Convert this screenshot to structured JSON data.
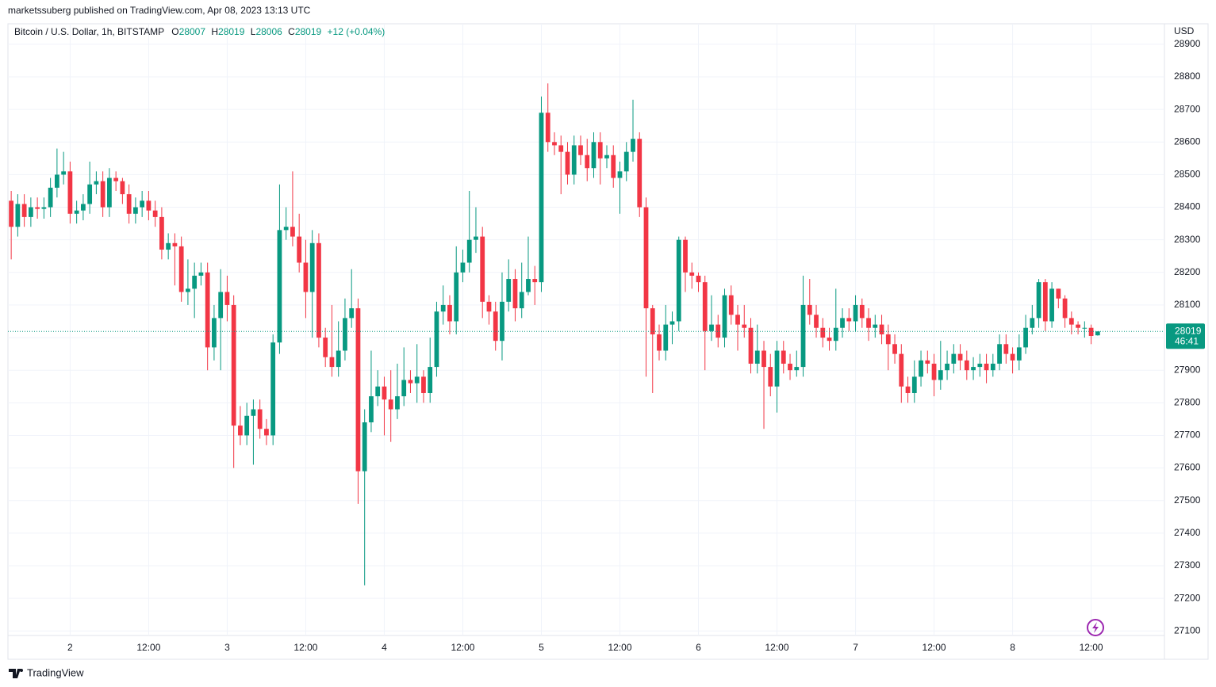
{
  "chart_data": {
    "type": "candlestick",
    "published": "marketssuberg published on TradingView.com, Apr 08, 2023 13:13 UTC",
    "legend": {
      "symbol": "Bitcoin / U.S. Dollar, 1h, BITSTAMP",
      "o_label": "O",
      "o": 28007,
      "h_label": "H",
      "h": 28019,
      "l_label": "L",
      "l": 28006,
      "c_label": "C",
      "c": 28019,
      "change": "+12 (+0.04%)"
    },
    "currency": "USD",
    "last_price": 28019,
    "countdown": "46:41",
    "brand": "TradingView",
    "up_color": "#089981",
    "down_color": "#f23645",
    "grid": true,
    "xlim": [
      -0.5,
      176.2
    ],
    "xticks": [
      {
        "value": 9,
        "label": "2"
      },
      {
        "value": 21,
        "label": "12:00"
      },
      {
        "value": 33,
        "label": "3"
      },
      {
        "value": 45,
        "label": "12:00"
      },
      {
        "value": 57,
        "label": "4"
      },
      {
        "value": 69,
        "label": "12:00"
      },
      {
        "value": 81,
        "label": "5"
      },
      {
        "value": 93,
        "label": "12:00"
      },
      {
        "value": 105,
        "label": "6"
      },
      {
        "value": 117,
        "label": "12:00"
      },
      {
        "value": 129,
        "label": "7"
      },
      {
        "value": 141,
        "label": "12:00"
      },
      {
        "value": 153,
        "label": "8"
      },
      {
        "value": 165,
        "label": "12:00"
      }
    ],
    "ylim": [
      27013,
      28963
    ],
    "yticks": [
      27100,
      27200,
      27300,
      27400,
      27500,
      27600,
      27700,
      27800,
      27900,
      28000,
      28100,
      28200,
      28300,
      28400,
      28500,
      28600,
      28700,
      28800,
      28900
    ],
    "open": [
      28420,
      28340,
      28410,
      28370,
      28400,
      28395,
      28400,
      28460,
      28500,
      28510,
      28380,
      28390,
      28410,
      28470,
      28480,
      28400,
      28490,
      28480,
      28440,
      28380,
      28400,
      28420,
      28390,
      28370,
      28270,
      28290,
      28280,
      28140,
      28150,
      28190,
      28200,
      27970,
      28060,
      28140,
      28100,
      27730,
      27700,
      27760,
      27780,
      27720,
      27700,
      27985,
      28330,
      28340,
      28310,
      28230,
      28140,
      28290,
      28000,
      27940,
      27910,
      27960,
      28060,
      28090,
      27590,
      27740,
      27820,
      27850,
      27810,
      27780,
      27820,
      27870,
      27860,
      27880,
      27830,
      27910,
      28080,
      28100,
      28050,
      28200,
      28230,
      28300,
      28310,
      28110,
      28080,
      27990,
      28110,
      28180,
      28090,
      28140,
      28180,
      28170,
      28690,
      28600,
      28590,
      28570,
      28500,
      28590,
      28560,
      28520,
      28600,
      28550,
      28560,
      28490,
      28510,
      28570,
      28610,
      28400,
      28090,
      28010,
      27960,
      28040,
      28050,
      28300,
      28200,
      28190,
      28170,
      28020,
      28040,
      28000,
      28130,
      28070,
      28040,
      28030,
      27920,
      27960,
      27910,
      27850,
      27960,
      27920,
      27900,
      27910,
      28100,
      28070,
      28030,
      28000,
      27990,
      28030,
      28060,
      28050,
      28100,
      28060,
      28030,
      28040,
      28010,
      27980,
      27950,
      27850,
      27830,
      27880,
      27930,
      27920,
      27870,
      27900,
      27920,
      27950,
      27930,
      27900,
      27910,
      27920,
      27900,
      27920,
      27980,
      27950,
      27930,
      27970,
      28030,
      28060,
      28170,
      28050,
      28150,
      28120,
      28060,
      28040,
      28030,
      28030,
      28007
    ],
    "high": [
      28450,
      28440,
      28440,
      28430,
      28430,
      28430,
      28490,
      28580,
      28570,
      28540,
      28420,
      28440,
      28540,
      28510,
      28510,
      28520,
      28510,
      28490,
      28470,
      28430,
      28450,
      28450,
      28420,
      28400,
      28320,
      28320,
      28310,
      28240,
      28230,
      28230,
      28230,
      28100,
      28210,
      28190,
      28130,
      27790,
      27800,
      27810,
      27810,
      27750,
      28010,
      28470,
      28400,
      28510,
      28380,
      28300,
      28330,
      28320,
      28030,
      28100,
      28050,
      28120,
      28210,
      28120,
      27780,
      27960,
      27900,
      27880,
      27900,
      27920,
      27970,
      27900,
      27980,
      27900,
      28000,
      28110,
      28160,
      28130,
      28280,
      28270,
      28450,
      28400,
      28340,
      28130,
      28110,
      28200,
      28240,
      28210,
      28230,
      28310,
      28220,
      28740,
      28780,
      28630,
      28620,
      28600,
      28620,
      28620,
      28610,
      28630,
      28630,
      28590,
      28590,
      28540,
      28600,
      28730,
      28630,
      28430,
      28100,
      28040,
      28100,
      28080,
      28310,
      28310,
      28230,
      28200,
      28190,
      28130,
      28070,
      28150,
      28160,
      28100,
      28100,
      28060,
      28040,
      27990,
      27950,
      27990,
      27990,
      27950,
      27960,
      28190,
      28180,
      28100,
      28060,
      28030,
      28150,
      28090,
      28090,
      28130,
      28120,
      28090,
      28070,
      28070,
      28040,
      28010,
      27980,
      27880,
      27930,
      27960,
      27960,
      27950,
      27990,
      27960,
      27980,
      27980,
      27960,
      27940,
      27950,
      27950,
      27950,
      28010,
      28010,
      27970,
      28010,
      28070,
      28100,
      28180,
      28180,
      28170,
      28150,
      28130,
      28080,
      28050,
      28050,
      28040,
      28019
    ],
    "low": [
      28240,
      28310,
      28340,
      28340,
      28365,
      28365,
      28370,
      28430,
      28470,
      28350,
      28350,
      28360,
      28380,
      28440,
      28370,
      28370,
      28450,
      28410,
      28350,
      28350,
      28370,
      28360,
      28340,
      28240,
      28240,
      28160,
      28110,
      28100,
      28060,
      28160,
      27900,
      27930,
      27900,
      28050,
      27600,
      27670,
      27670,
      27610,
      27690,
      27670,
      27670,
      27950,
      28300,
      28280,
      28200,
      28060,
      28000,
      27970,
      27910,
      27880,
      27880,
      27930,
      28030,
      27490,
      27240,
      27710,
      27790,
      27700,
      27680,
      27750,
      27790,
      27830,
      27800,
      27800,
      27800,
      27880,
      28040,
      28010,
      28010,
      28170,
      28200,
      28260,
      28060,
      28040,
      27960,
      27930,
      28080,
      28050,
      28060,
      28130,
      28100,
      28140,
      28570,
      28560,
      28440,
      28470,
      28470,
      28530,
      28480,
      28490,
      28470,
      28520,
      28460,
      28380,
      28480,
      28540,
      28370,
      27880,
      27830,
      27930,
      27930,
      27980,
      28020,
      28140,
      28150,
      28140,
      27900,
      27990,
      27970,
      27970,
      28040,
      27960,
      28000,
      27890,
      27890,
      27720,
      27820,
      27770,
      27890,
      27870,
      27880,
      27880,
      28040,
      28000,
      27970,
      27960,
      27960,
      28000,
      28020,
      28020,
      28030,
      27990,
      28000,
      27980,
      27900,
      27920,
      27800,
      27800,
      27800,
      27850,
      27890,
      27820,
      27840,
      27870,
      27890,
      27900,
      27870,
      27870,
      27880,
      27860,
      27880,
      27900,
      27920,
      27890,
      27900,
      27950,
      28010,
      28030,
      28020,
      28030,
      28090,
      28030,
      28010,
      28010,
      28000,
      27980,
      28006
    ],
    "close": [
      28340,
      28410,
      28370,
      28400,
      28395,
      28400,
      28460,
      28500,
      28510,
      28380,
      28390,
      28410,
      28470,
      28480,
      28400,
      28490,
      28480,
      28440,
      28380,
      28400,
      28420,
      28390,
      28370,
      28270,
      28290,
      28280,
      28140,
      28150,
      28190,
      28200,
      27970,
      28060,
      28140,
      28100,
      27730,
      27700,
      27760,
      27780,
      27720,
      27700,
      27985,
      28330,
      28340,
      28310,
      28230,
      28140,
      28290,
      28000,
      27940,
      27910,
      27960,
      28060,
      28090,
      27590,
      27740,
      27820,
      27850,
      27810,
      27780,
      27820,
      27870,
      27860,
      27880,
      27830,
      27910,
      28080,
      28100,
      28050,
      28200,
      28230,
      28300,
      28310,
      28110,
      28080,
      27990,
      28110,
      28180,
      28090,
      28140,
      28180,
      28170,
      28690,
      28600,
      28590,
      28570,
      28500,
      28590,
      28560,
      28520,
      28600,
      28550,
      28560,
      28490,
      28510,
      28570,
      28610,
      28400,
      28090,
      28010,
      27960,
      28040,
      28050,
      28300,
      28200,
      28190,
      28170,
      28020,
      28040,
      28000,
      28130,
      28070,
      28040,
      28030,
      27920,
      27960,
      27910,
      27850,
      27960,
      27920,
      27900,
      27910,
      28100,
      28070,
      28030,
      28000,
      27990,
      28030,
      28060,
      28050,
      28100,
      28060,
      28030,
      28040,
      28010,
      27980,
      27950,
      27850,
      27830,
      27880,
      27930,
      27920,
      27870,
      27900,
      27920,
      27950,
      27930,
      27900,
      27910,
      27920,
      27900,
      27920,
      27980,
      27950,
      27930,
      27970,
      28030,
      28060,
      28170,
      28050,
      28150,
      28120,
      28060,
      28040,
      28030,
      28030,
      28005,
      28019
    ]
  }
}
